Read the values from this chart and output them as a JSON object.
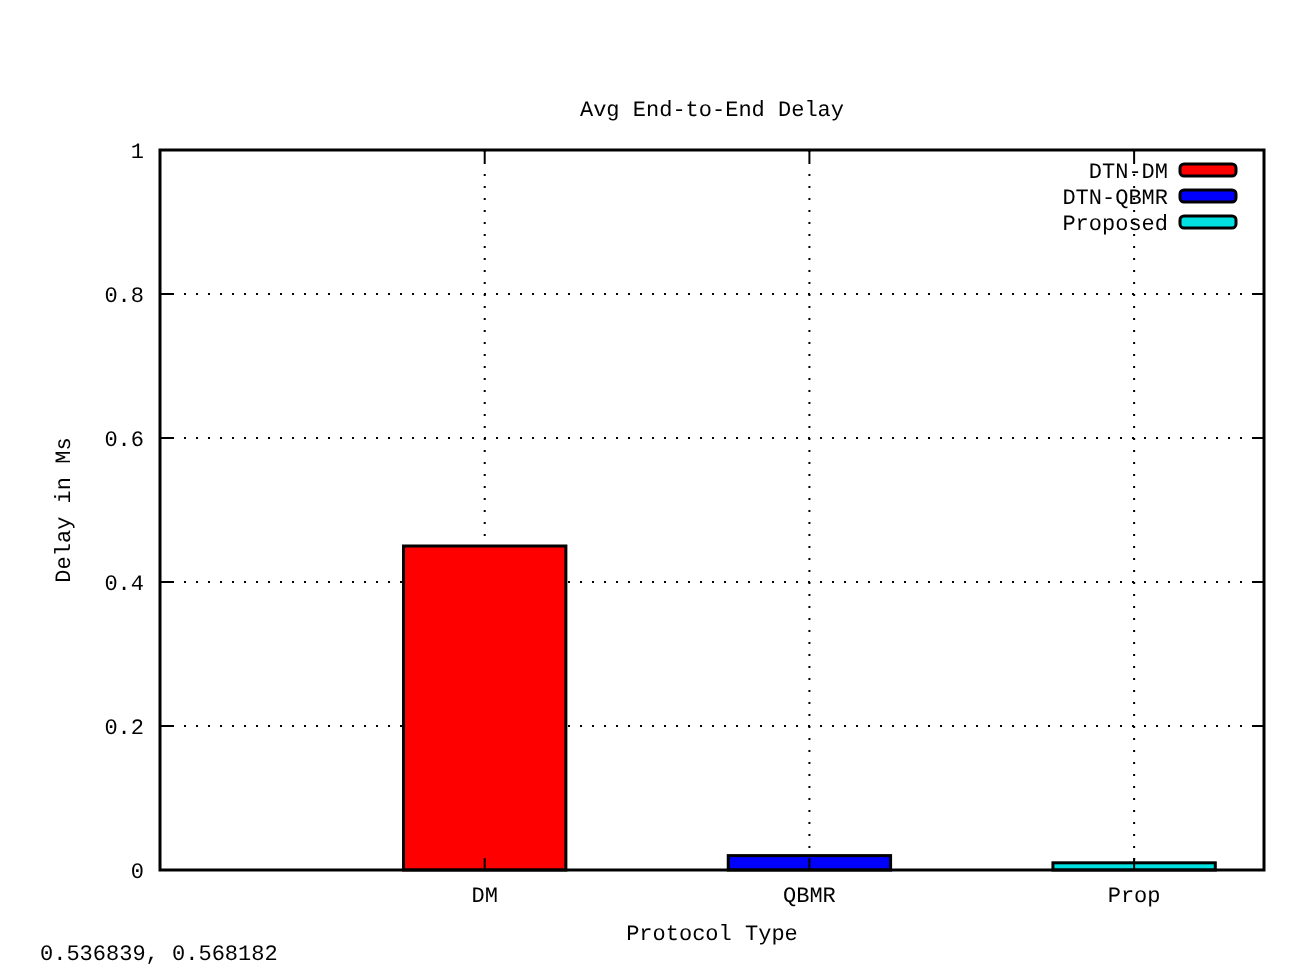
{
  "chart_data": {
    "type": "bar",
    "title": "Avg End-to-End Delay",
    "xlabel": "Protocol Type",
    "ylabel": "Delay in Ms",
    "categories": [
      "DM",
      "QBMR",
      "Prop"
    ],
    "series": [
      {
        "name": "DTN-DM",
        "color": "#ff0000",
        "values": [
          0.45,
          null,
          null
        ]
      },
      {
        "name": "DTN-QBMR",
        "color": "#0000ff",
        "values": [
          null,
          0.02,
          null
        ]
      },
      {
        "name": "Proposed",
        "color": "#00e0e0",
        "values": [
          null,
          null,
          0.01
        ]
      }
    ],
    "ylim": [
      0,
      1
    ],
    "yticks": [
      0,
      0.2,
      0.4,
      0.6,
      0.8,
      1
    ],
    "grid": true,
    "legend": "top right",
    "annotations": [
      "0.536839, 0.568182"
    ]
  }
}
